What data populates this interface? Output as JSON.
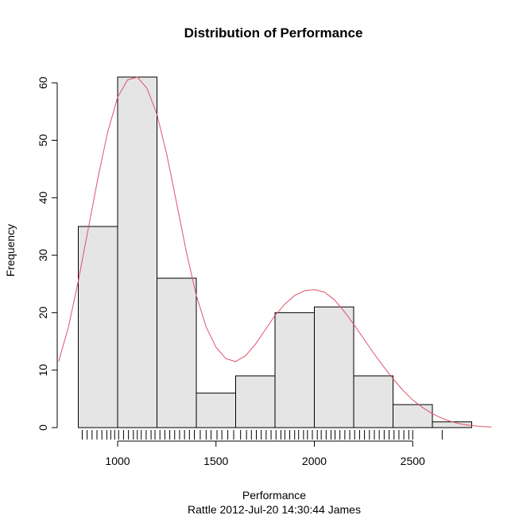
{
  "chart_data": {
    "type": "bar",
    "title": "Distribution of Performance",
    "xlabel": "Performance",
    "ylabel": "Frequency",
    "subtitle": "Rattle 2012-Jul-20 14:30:44 James",
    "bins": [
      {
        "start": 800,
        "end": 1000,
        "count": 35
      },
      {
        "start": 1000,
        "end": 1200,
        "count": 61
      },
      {
        "start": 1200,
        "end": 1400,
        "count": 26
      },
      {
        "start": 1400,
        "end": 1600,
        "count": 6
      },
      {
        "start": 1600,
        "end": 1800,
        "count": 9
      },
      {
        "start": 1800,
        "end": 2000,
        "count": 20
      },
      {
        "start": 2000,
        "end": 2200,
        "count": 21
      },
      {
        "start": 2200,
        "end": 2400,
        "count": 9
      },
      {
        "start": 2400,
        "end": 2600,
        "count": 4
      },
      {
        "start": 2600,
        "end": 2800,
        "count": 1
      }
    ],
    "xlim": [
      700,
      2900
    ],
    "ylim": [
      0,
      61
    ],
    "x_ticks": [
      1000,
      1500,
      2000,
      2500
    ],
    "y_ticks": [
      0,
      10,
      20,
      30,
      40,
      50,
      60
    ],
    "density_curve": {
      "x": [
        700,
        750,
        800,
        850,
        900,
        950,
        1000,
        1050,
        1100,
        1150,
        1200,
        1250,
        1300,
        1350,
        1400,
        1450,
        1500,
        1550,
        1600,
        1650,
        1700,
        1750,
        1800,
        1850,
        1900,
        1950,
        2000,
        2050,
        2100,
        2150,
        2200,
        2250,
        2300,
        2350,
        2400,
        2450,
        2500,
        2550,
        2600,
        2650,
        2700,
        2750,
        2800,
        2850,
        2900
      ],
      "y": [
        11.5,
        17.5,
        25.5,
        34.5,
        43.5,
        51.5,
        57.5,
        60.5,
        61,
        59,
        54.5,
        47.5,
        39,
        30.5,
        23,
        17.5,
        14,
        12,
        11.5,
        12.5,
        14.5,
        17,
        19.5,
        21.5,
        23,
        23.8,
        24,
        23.6,
        22.3,
        20.3,
        18,
        15.5,
        13,
        10.7,
        8.5,
        6.5,
        4.8,
        3.5,
        2.4,
        1.6,
        1,
        0.6,
        0.35,
        0.2,
        0.1
      ]
    },
    "rug": [
      820,
      845,
      870,
      895,
      920,
      945,
      965,
      985,
      1005,
      1030,
      1055,
      1080,
      1100,
      1120,
      1145,
      1170,
      1190,
      1215,
      1240,
      1265,
      1290,
      1315,
      1340,
      1365,
      1390,
      1420,
      1450,
      1475,
      1505,
      1530,
      1560,
      1590,
      1625,
      1655,
      1680,
      1705,
      1730,
      1755,
      1780,
      1805,
      1830,
      1850,
      1875,
      1900,
      1920,
      1945,
      1965,
      1990,
      2015,
      2035,
      2060,
      2085,
      2105,
      2130,
      2155,
      2180,
      2205,
      2230,
      2255,
      2280,
      2305,
      2330,
      2355,
      2380,
      2405,
      2430,
      2455,
      2480,
      2500,
      2650
    ],
    "colors": {
      "bar_fill": "#e5e5e5",
      "bar_stroke": "#000000",
      "curve": "#df536b"
    }
  }
}
